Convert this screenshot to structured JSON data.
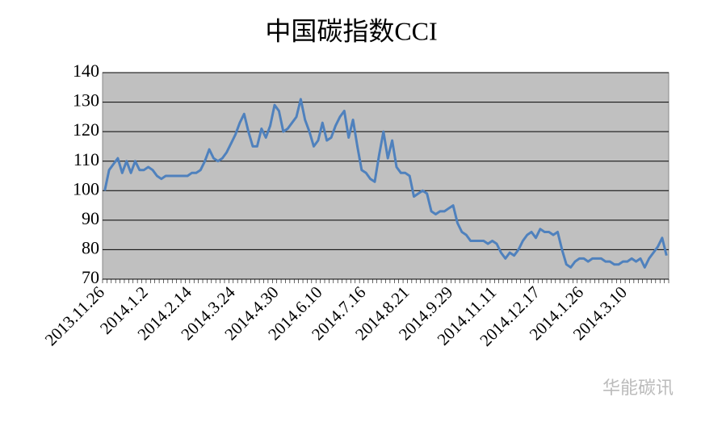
{
  "chart_data": {
    "type": "line",
    "title": "中国碳指数CCI",
    "watermark": "华能碳讯",
    "categories": [
      "2013.11.26",
      null,
      null,
      null,
      null,
      null,
      null,
      null,
      null,
      null,
      "2014.1.2",
      null,
      null,
      null,
      null,
      null,
      null,
      null,
      null,
      null,
      "2014.2.14",
      null,
      null,
      null,
      null,
      null,
      null,
      null,
      null,
      null,
      "2014.3.24",
      null,
      null,
      null,
      null,
      null,
      null,
      null,
      null,
      null,
      "2014.4.30",
      null,
      null,
      null,
      null,
      null,
      null,
      null,
      null,
      null,
      "2014.6.10",
      null,
      null,
      null,
      null,
      null,
      null,
      null,
      null,
      null,
      "2014.7.16",
      null,
      null,
      null,
      null,
      null,
      null,
      null,
      null,
      null,
      "2014.8.21",
      null,
      null,
      null,
      null,
      null,
      null,
      null,
      null,
      null,
      "2014.9.29",
      null,
      null,
      null,
      null,
      null,
      null,
      null,
      null,
      null,
      "2014.11.11",
      null,
      null,
      null,
      null,
      null,
      null,
      null,
      null,
      null,
      "2014.12.17",
      null,
      null,
      null,
      null,
      null,
      null,
      null,
      null,
      null,
      "2014.1.26",
      null,
      null,
      null,
      null,
      null,
      null,
      null,
      null,
      null,
      "2014.3.10",
      null,
      null,
      null,
      null,
      null,
      null,
      null,
      null,
      null
    ],
    "series": [
      {
        "name": "CCI",
        "color": "#4f81bd",
        "values": [
          100,
          107,
          109,
          111,
          106,
          110,
          106,
          110,
          107,
          107,
          108,
          107,
          105,
          104,
          105,
          105,
          105,
          105,
          105,
          105,
          106,
          106,
          107,
          110,
          114,
          111,
          110,
          111,
          113,
          116,
          119,
          123,
          126,
          120,
          115,
          115,
          121,
          118,
          122,
          129,
          127,
          120,
          121,
          123,
          125,
          131,
          124,
          120,
          115,
          117,
          123,
          117,
          118,
          122,
          125,
          127,
          118,
          124,
          115,
          107,
          106,
          104,
          103,
          112,
          120,
          111,
          117,
          108,
          106,
          106,
          105,
          98,
          99,
          100,
          99,
          93,
          92,
          93,
          93,
          94,
          95,
          89,
          86,
          85,
          83,
          83,
          83,
          83,
          82,
          83,
          82,
          79,
          77,
          79,
          78,
          80,
          83,
          85,
          86,
          84,
          87,
          86,
          86,
          85,
          86,
          80,
          75,
          74,
          76,
          77,
          77,
          76,
          77,
          77,
          77,
          76,
          76,
          75,
          75,
          76,
          76,
          77,
          76,
          77,
          74,
          77,
          79,
          81,
          84,
          78
        ]
      }
    ],
    "ylim": [
      70,
      140
    ],
    "yticks": [
      70,
      80,
      90,
      100,
      110,
      120,
      130,
      140
    ],
    "grid": true,
    "plot_background": "#c0c0c0"
  }
}
